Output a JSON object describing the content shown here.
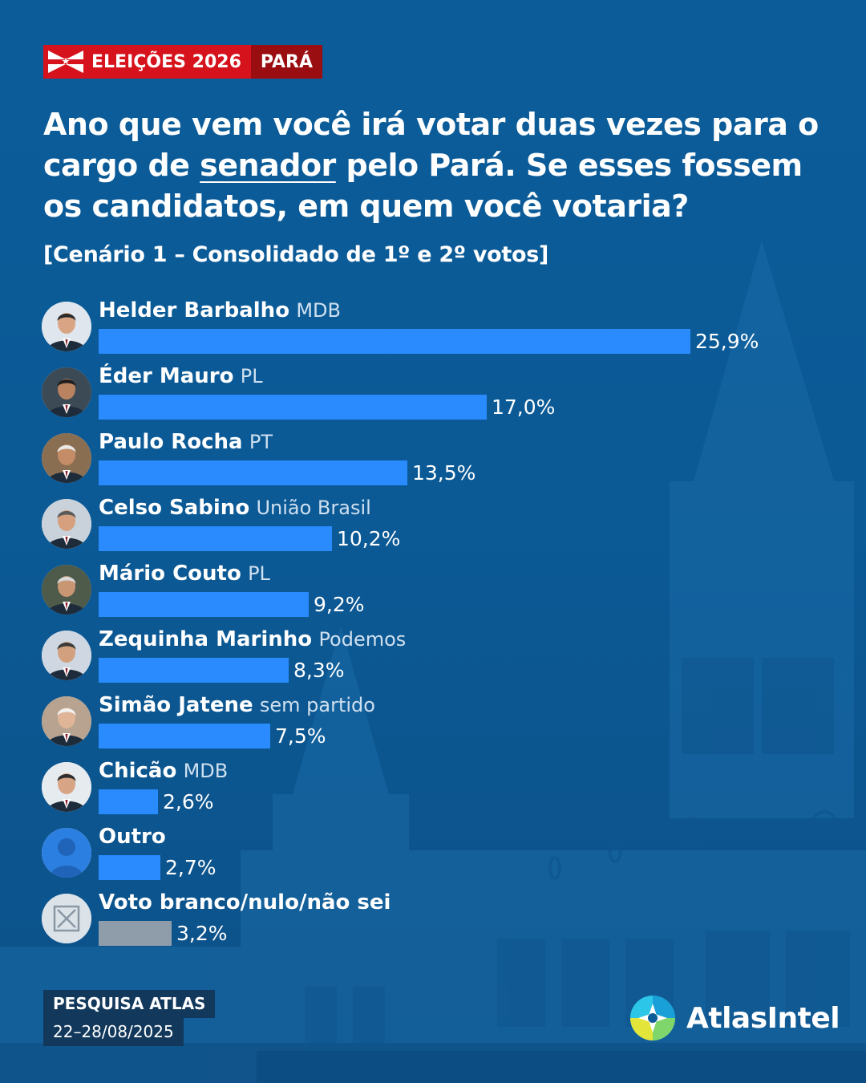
{
  "header": {
    "tag_left": "ELEIÇÕES 2026",
    "tag_right": "PARÁ",
    "question_part1": "Ano que vem você irá votar duas vezes para o cargo de ",
    "question_highlight": "senador",
    "question_part2": " pelo Pará. Se esses fossem os candidatos, em quem você votaria?",
    "scenario": "[Cenário 1 – Consolidado de 1º e 2º votos]"
  },
  "chart_data": {
    "type": "bar",
    "orientation": "horizontal",
    "unit": "%",
    "xlim": [
      0,
      25.9
    ],
    "categories": [
      "Helder Barbalho",
      "Éder Mauro",
      "Paulo Rocha",
      "Celso Sabino",
      "Mário Couto",
      "Zequinha Marinho",
      "Simão Jatene",
      "Chicão",
      "Outro",
      "Voto branco/nulo/não sei"
    ],
    "items": [
      {
        "name": "Helder Barbalho",
        "party": "MDB",
        "value": 25.9,
        "label": "25,9%",
        "color": "#2a8bff",
        "avatar": "person-photo-icon"
      },
      {
        "name": "Éder Mauro",
        "party": "PL",
        "value": 17.0,
        "label": "17,0%",
        "color": "#2a8bff",
        "avatar": "person-photo-icon"
      },
      {
        "name": "Paulo Rocha",
        "party": "PT",
        "value": 13.5,
        "label": "13,5%",
        "color": "#2a8bff",
        "avatar": "person-photo-icon"
      },
      {
        "name": "Celso Sabino",
        "party": "União Brasil",
        "value": 10.2,
        "label": "10,2%",
        "color": "#2a8bff",
        "avatar": "person-photo-icon"
      },
      {
        "name": "Mário Couto",
        "party": "PL",
        "value": 9.2,
        "label": "9,2%",
        "color": "#2a8bff",
        "avatar": "person-photo-icon"
      },
      {
        "name": "Zequinha Marinho",
        "party": "Podemos",
        "value": 8.3,
        "label": "8,3%",
        "color": "#2a8bff",
        "avatar": "person-photo-icon"
      },
      {
        "name": "Simão Jatene",
        "party": "sem partido",
        "value": 7.5,
        "label": "7,5%",
        "color": "#2a8bff",
        "avatar": "person-photo-icon"
      },
      {
        "name": "Chicão",
        "party": "MDB",
        "value": 2.6,
        "label": "2,6%",
        "color": "#2a8bff",
        "avatar": "person-photo-icon"
      },
      {
        "name": "Outro",
        "party": "",
        "value": 2.7,
        "label": "2,7%",
        "color": "#2a8bff",
        "avatar": "person-silhouette-icon"
      },
      {
        "name": "Voto branco/nulo/não sei",
        "party": "",
        "value": 3.2,
        "label": "3,2%",
        "color": "#8f9dab",
        "avatar": "blank-ballot-icon"
      }
    ]
  },
  "footer": {
    "source_title": "PESQUISA ATLAS",
    "source_dates": "22–28/08/2025",
    "brand": "AtlasIntel"
  },
  "colors": {
    "background": "#0b5c99",
    "bar": "#2a8bff",
    "bar_neutral": "#8f9dab",
    "tag_red": "#d6131c",
    "tag_dark_red": "#9a0e12"
  }
}
